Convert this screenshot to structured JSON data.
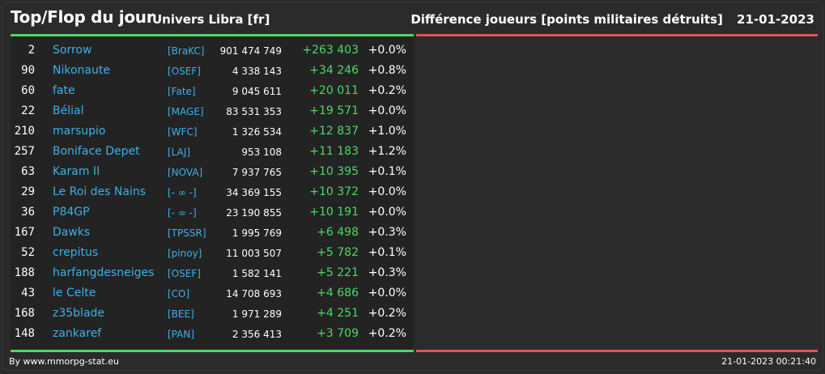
{
  "header": {
    "title": "Top/Flop du jour",
    "universe": "Univers Libra [fr]",
    "subtitle": "Différence joueurs [points militaires détruits]",
    "date": "21-01-2023"
  },
  "colors": {
    "positive": "#4cd964",
    "negative": "#e0574f",
    "link": "#3db0e8"
  },
  "top_rows": [
    {
      "rank": "2",
      "name": "Sorrow",
      "alliance": "[BraKC]",
      "points": "901 474 749",
      "delta": "+263 403",
      "pct": "+0.0%"
    },
    {
      "rank": "90",
      "name": "Nikonaute",
      "alliance": "[OSEF]",
      "points": "4 338 143",
      "delta": "+34 246",
      "pct": "+0.8%"
    },
    {
      "rank": "60",
      "name": "fate",
      "alliance": "[Fate]",
      "points": "9 045 611",
      "delta": "+20 011",
      "pct": "+0.2%"
    },
    {
      "rank": "22",
      "name": "Bélial",
      "alliance": "[MAGE]",
      "points": "83 531 353",
      "delta": "+19 571",
      "pct": "+0.0%"
    },
    {
      "rank": "210",
      "name": "marsupio",
      "alliance": "[WFC]",
      "points": "1 326 534",
      "delta": "+12 837",
      "pct": "+1.0%"
    },
    {
      "rank": "257",
      "name": "Boniface Depet",
      "alliance": "[LAJ]",
      "points": "953 108",
      "delta": "+11 183",
      "pct": "+1.2%"
    },
    {
      "rank": "63",
      "name": "Karam II",
      "alliance": "[NOVA]",
      "points": "7 937 765",
      "delta": "+10 395",
      "pct": "+0.1%"
    },
    {
      "rank": "29",
      "name": "Le Roi des Nains",
      "alliance": "[- ∞ -]",
      "points": "34 369 155",
      "delta": "+10 372",
      "pct": "+0.0%"
    },
    {
      "rank": "36",
      "name": "P84GP",
      "alliance": "[- ∞ -]",
      "points": "23 190 855",
      "delta": "+10 191",
      "pct": "+0.0%"
    },
    {
      "rank": "167",
      "name": "Dawks",
      "alliance": "[TPSSR]",
      "points": "1 995 769",
      "delta": "+6 498",
      "pct": "+0.3%"
    },
    {
      "rank": "52",
      "name": "crepitus",
      "alliance": "[pinoy]",
      "points": "11 003 507",
      "delta": "+5 782",
      "pct": "+0.1%"
    },
    {
      "rank": "188",
      "name": "harfangdesneiges",
      "alliance": "[OSEF]",
      "points": "1 582 141",
      "delta": "+5 221",
      "pct": "+0.3%"
    },
    {
      "rank": "43",
      "name": "le Celte",
      "alliance": "[CO]",
      "points": "14 708 693",
      "delta": "+4 686",
      "pct": "+0.0%"
    },
    {
      "rank": "168",
      "name": "z35blade",
      "alliance": "[BEE]",
      "points": "1 971 289",
      "delta": "+4 251",
      "pct": "+0.2%"
    },
    {
      "rank": "148",
      "name": "zankaref",
      "alliance": "[PAN]",
      "points": "2 356 413",
      "delta": "+3 709",
      "pct": "+0.2%"
    }
  ],
  "footer": {
    "credit": "By www.mmorpg-stat.eu",
    "timestamp": "21-01-2023 00:21:40"
  }
}
